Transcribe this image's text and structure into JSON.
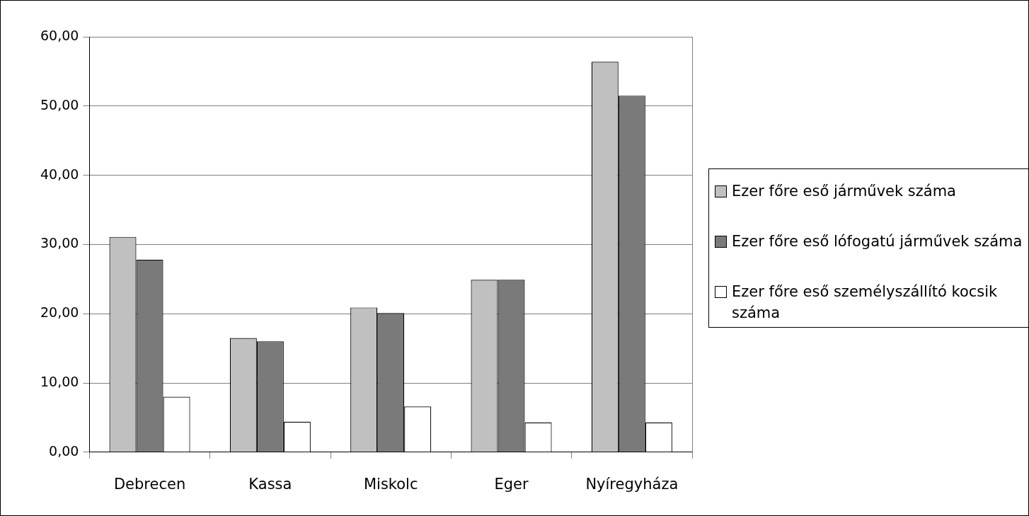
{
  "chart_data": {
    "type": "bar",
    "categories": [
      "Debrecen",
      "Kassa",
      "Miskolc",
      "Eger",
      "Nyíregyháza"
    ],
    "series": [
      {
        "name": "Ezer főre eső járművek száma",
        "color": "#c0c0c0",
        "values": [
          31.1,
          16.5,
          20.9,
          24.9,
          56.4
        ]
      },
      {
        "name": "Ezer főre eső lófogatú járművek száma",
        "color": "#7a7a7a",
        "values": [
          27.8,
          16.0,
          20.1,
          24.9,
          51.5
        ]
      },
      {
        "name": "Ezer főre eső személyszállító kocsik száma",
        "color": "#ffffff",
        "values": [
          8.0,
          4.4,
          6.6,
          4.3,
          4.3
        ]
      }
    ],
    "ylim": [
      0,
      60
    ],
    "yticks": [
      {
        "value": 0,
        "label": "0,00"
      },
      {
        "value": 10,
        "label": "10,00"
      },
      {
        "value": 20,
        "label": "20,00"
      },
      {
        "value": 30,
        "label": "30,00"
      },
      {
        "value": 40,
        "label": "40,00"
      },
      {
        "value": 50,
        "label": "50,00"
      },
      {
        "value": 60,
        "label": "60,00"
      }
    ],
    "grid": "y",
    "legend": "right"
  }
}
